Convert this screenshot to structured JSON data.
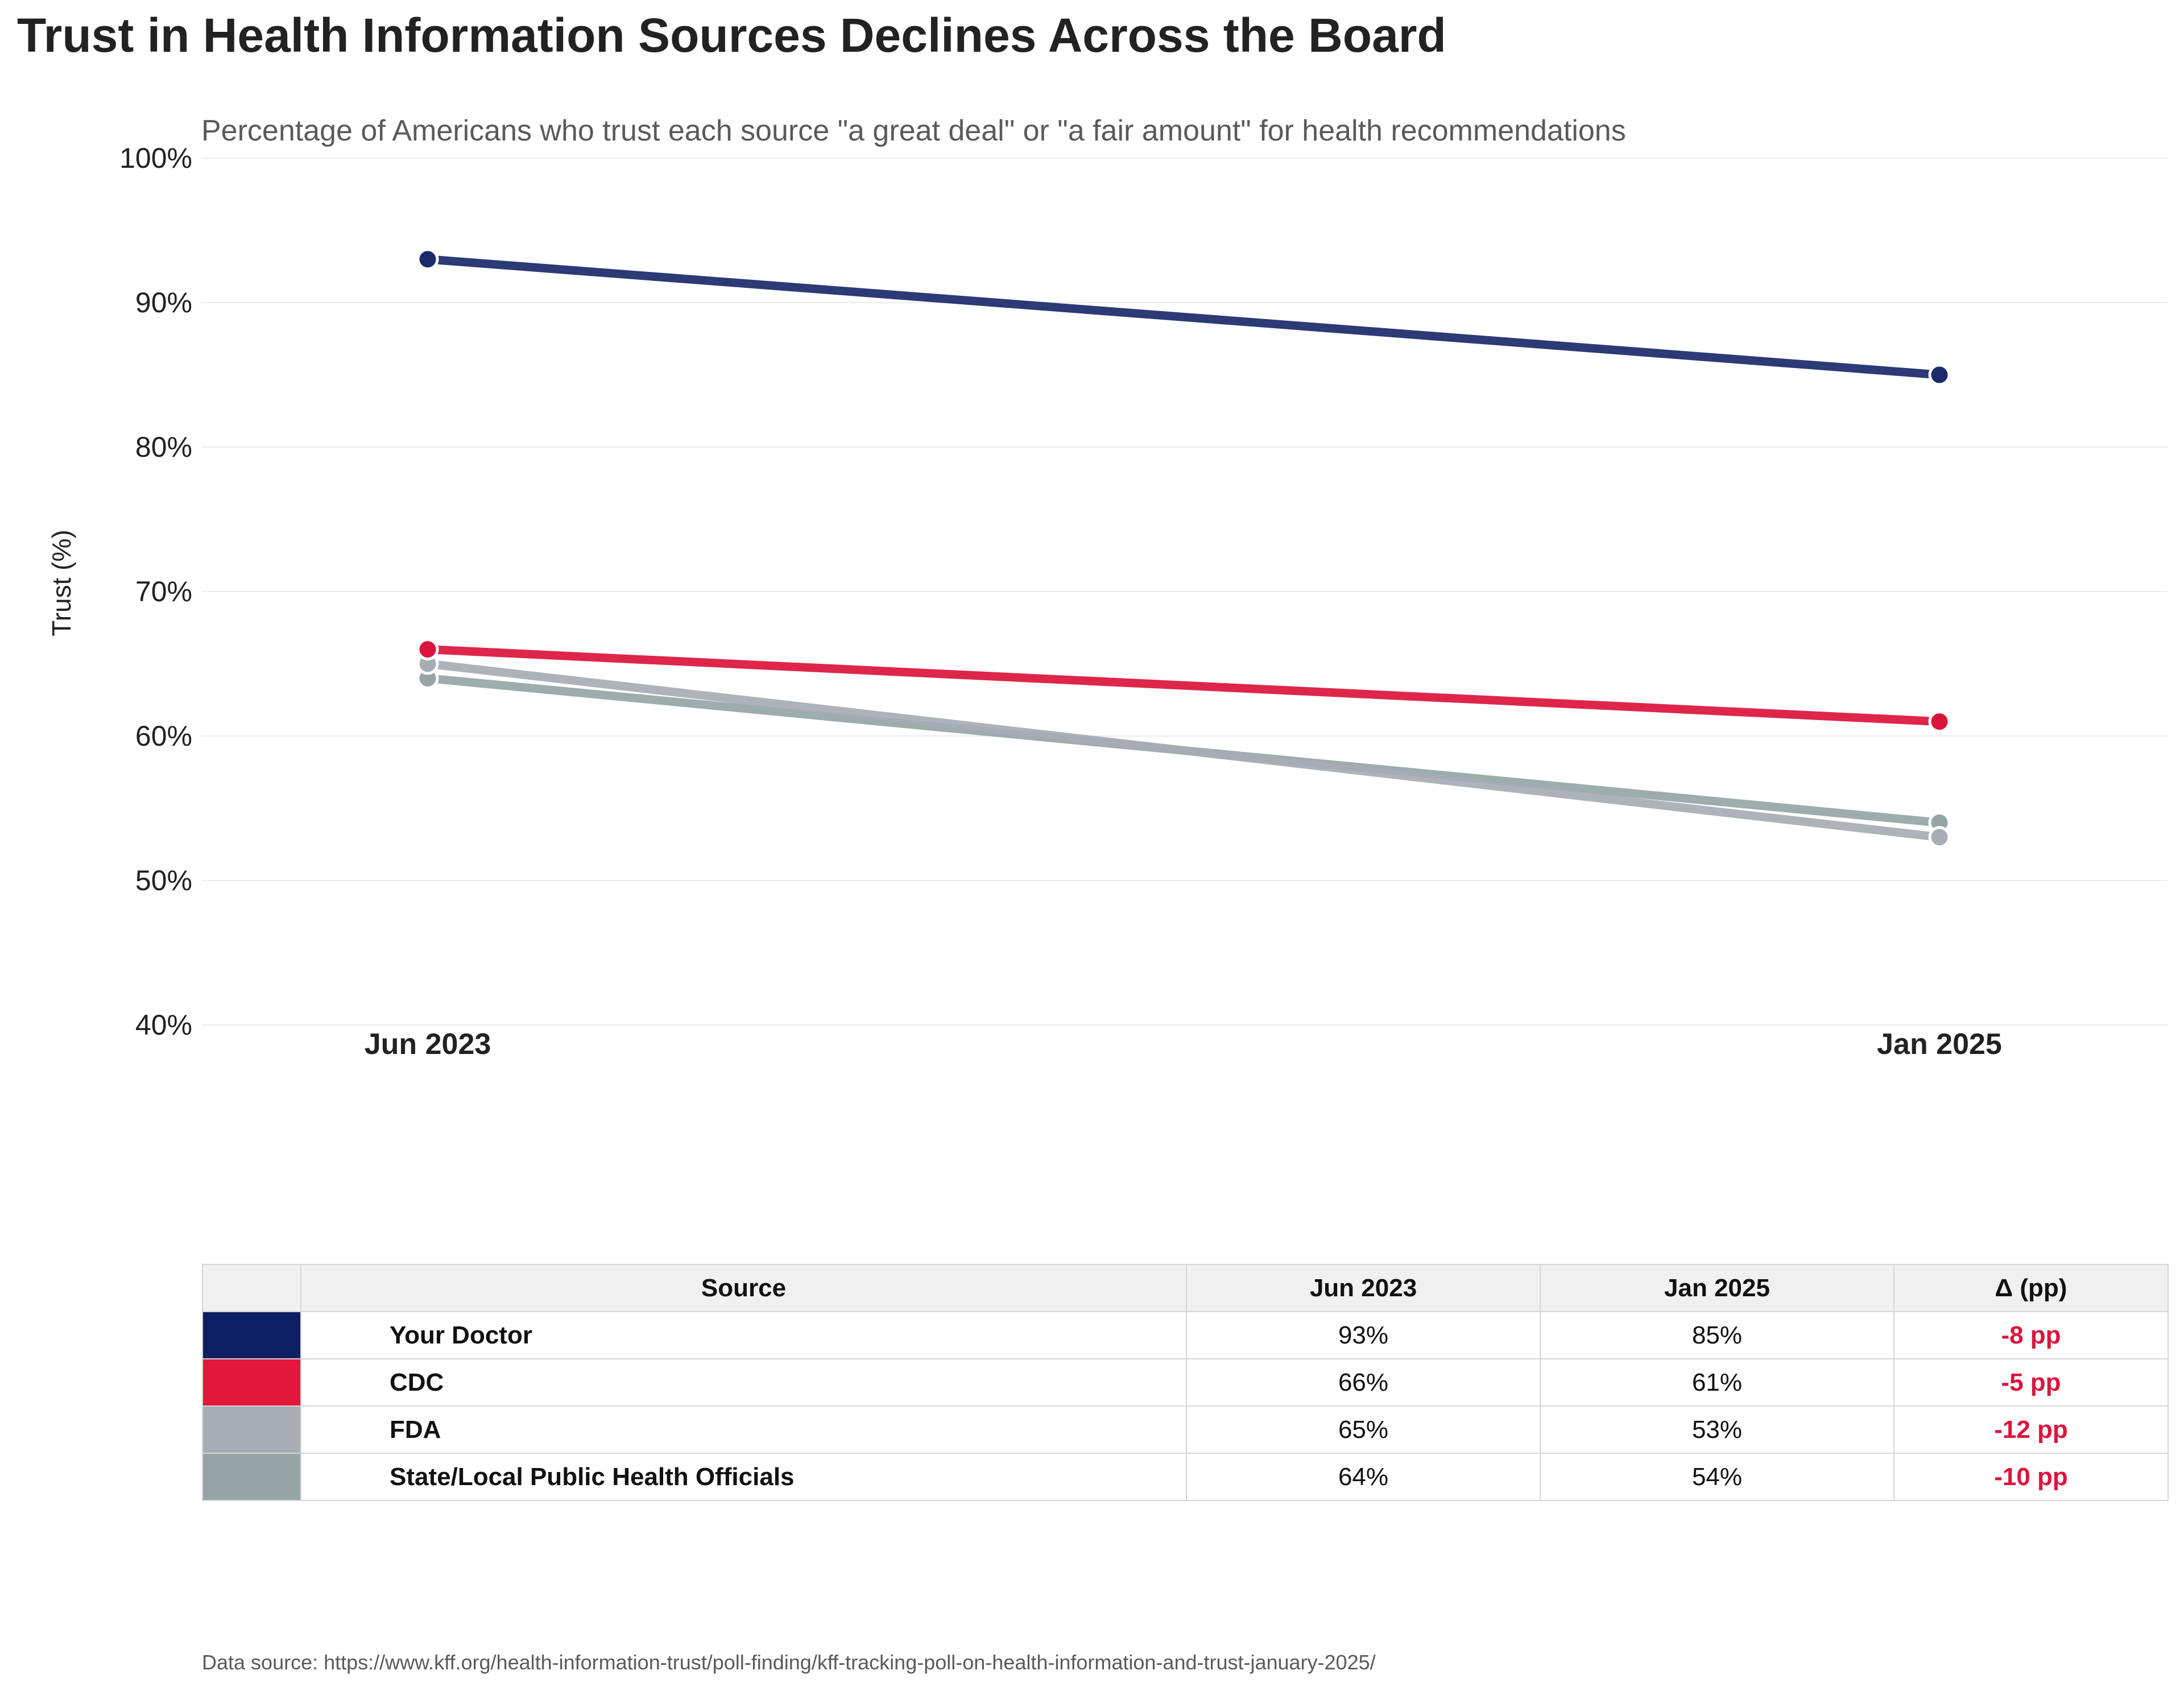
{
  "title": "Trust in Health Information Sources Declines Across the Board",
  "subtitle": "Percentage of Americans who trust each source \"a great deal\" or \"a fair amount\" for health recommendations",
  "footer": "Data source: https://www.kff.org/health-information-trust/poll-finding/kff-tracking-poll-on-health-information-and-trust-january-2025/",
  "chart_data": {
    "type": "line",
    "title": "Trust in Health Information Sources Declines Across the Board",
    "xlabel": "",
    "ylabel": "Trust (%)",
    "categories": [
      "Jun 2023",
      "Jan 2025"
    ],
    "ylim": [
      40,
      100
    ],
    "yticks": [
      40,
      50,
      60,
      70,
      80,
      90,
      100
    ],
    "ytick_labels": [
      "40%",
      "50%",
      "60%",
      "70%",
      "80%",
      "90%",
      "100%"
    ],
    "grid": true,
    "series": [
      {
        "name": "Your Doctor",
        "values": [
          93,
          85
        ],
        "color": "#1b2a6b"
      },
      {
        "name": "CDC",
        "values": [
          66,
          61
        ],
        "color": "#dc143c"
      },
      {
        "name": "FDA",
        "values": [
          65,
          53
        ],
        "color": "#a8adb5"
      },
      {
        "name": "State/Local Public Health Officials",
        "values": [
          64,
          54
        ],
        "color": "#95a5a6"
      }
    ]
  },
  "table": {
    "headers": {
      "source": "Source",
      "jun": "Jun 2023",
      "jan": "Jan 2025",
      "delta": "Δ (pp)"
    },
    "rows": [
      {
        "color": "#0d1f63",
        "source": "Your Doctor",
        "jun": "93%",
        "jan": "85%",
        "delta": "-8 pp"
      },
      {
        "color": "#e3173a",
        "source": "CDC",
        "jun": "66%",
        "jan": "61%",
        "delta": "-5 pp"
      },
      {
        "color": "#a8adb5",
        "source": "FDA",
        "jun": "65%",
        "jan": "53%",
        "delta": "-12 pp"
      },
      {
        "color": "#95a5a6",
        "source": "State/Local Public Health Officials",
        "jun": "64%",
        "jan": "54%",
        "delta": "-10 pp"
      }
    ]
  }
}
